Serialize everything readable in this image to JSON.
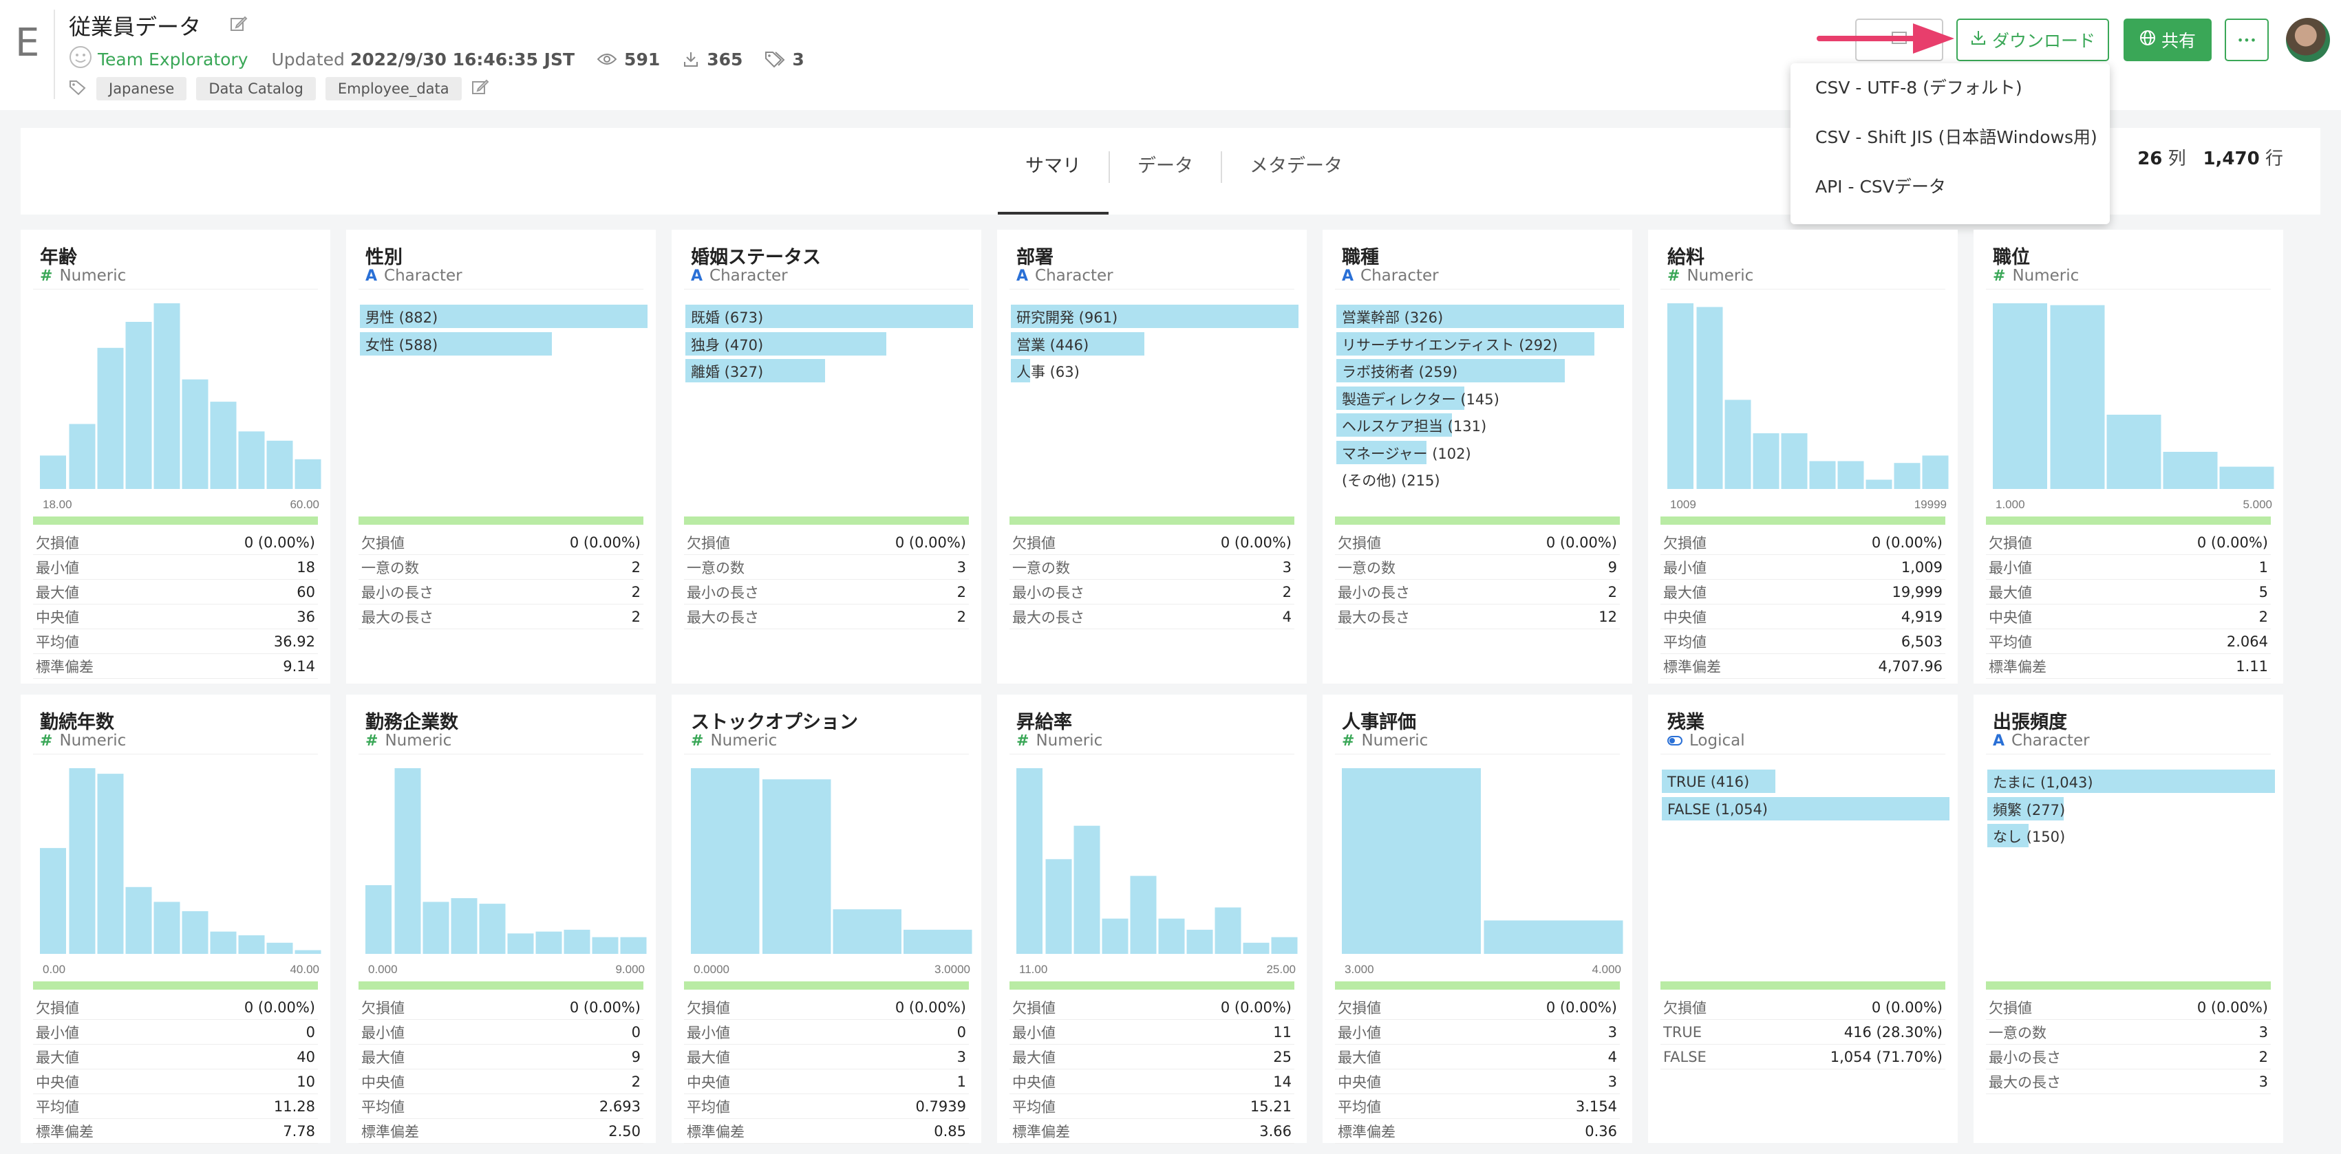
{
  "header": {
    "logo_letter": "E",
    "title": "従業員データ",
    "team": "Team Exploratory",
    "updated_label": "Updated",
    "updated_value": "2022/9/30 16:46:35 JST",
    "views": "591",
    "downloads": "365",
    "tags_count": "3",
    "tags": [
      "Japanese",
      "Data Catalog",
      "Employee_data"
    ],
    "download_button": "ダウンロード",
    "share_button": "共有",
    "more_button": "•••"
  },
  "dropdown": {
    "items": [
      "CSV - UTF-8 (デフォルト)",
      "CSV - Shift JIS (日本語Windows用)",
      "API - CSVデータ"
    ]
  },
  "tabs": [
    "サマリ",
    "データ",
    "メタデータ"
  ],
  "dims": {
    "cols": "26",
    "cols_unit": "列",
    "rows": "1,470",
    "rows_unit": "行"
  },
  "colors": {
    "accent": "#3aa757",
    "bar": "#aee1f1",
    "complete": "#b9eba4",
    "arrow": "#e83e6c"
  },
  "cards": [
    {
      "title": "年齢",
      "type": "Numeric",
      "kind": "hist",
      "hist": [
        0.18,
        0.35,
        0.76,
        0.9,
        1.0,
        0.59,
        0.47,
        0.31,
        0.26,
        0.16
      ],
      "axis_min": "18.00",
      "axis_max": "60.00",
      "stats": [
        [
          "欠損値",
          "0 (0.00%)"
        ],
        [
          "最小値",
          "18"
        ],
        [
          "最大値",
          "60"
        ],
        [
          "中央値",
          "36"
        ],
        [
          "平均値",
          "36.92"
        ],
        [
          "標準偏差",
          "9.14"
        ]
      ]
    },
    {
      "title": "性別",
      "type": "Character",
      "kind": "cat",
      "cats": [
        {
          "label": "男性 (882)",
          "frac": 1.0
        },
        {
          "label": "女性 (588)",
          "frac": 0.667
        }
      ],
      "stats": [
        [
          "欠損値",
          "0 (0.00%)"
        ],
        [
          "一意の数",
          "2"
        ],
        [
          "最小の長さ",
          "2"
        ],
        [
          "最大の長さ",
          "2"
        ]
      ]
    },
    {
      "title": "婚姻ステータス",
      "type": "Character",
      "kind": "cat",
      "cats": [
        {
          "label": "既婚 (673)",
          "frac": 1.0
        },
        {
          "label": "独身 (470)",
          "frac": 0.698
        },
        {
          "label": "離婚 (327)",
          "frac": 0.486
        }
      ],
      "stats": [
        [
          "欠損値",
          "0 (0.00%)"
        ],
        [
          "一意の数",
          "3"
        ],
        [
          "最小の長さ",
          "2"
        ],
        [
          "最大の長さ",
          "2"
        ]
      ]
    },
    {
      "title": "部署",
      "type": "Character",
      "kind": "cat",
      "cats": [
        {
          "label": "研究開発 (961)",
          "frac": 1.0
        },
        {
          "label": "営業 (446)",
          "frac": 0.464
        },
        {
          "label": "人事 (63)",
          "frac": 0.066
        }
      ],
      "stats": [
        [
          "欠損値",
          "0 (0.00%)"
        ],
        [
          "一意の数",
          "3"
        ],
        [
          "最小の長さ",
          "2"
        ],
        [
          "最大の長さ",
          "4"
        ]
      ]
    },
    {
      "title": "職種",
      "type": "Character",
      "kind": "cat",
      "cats": [
        {
          "label": "営業幹部 (326)",
          "frac": 1.0
        },
        {
          "label": "リサーチサイエンティスト (292)",
          "frac": 0.896
        },
        {
          "label": "ラボ技術者 (259)",
          "frac": 0.794
        },
        {
          "label": "製造ディレクター (145)",
          "frac": 0.445
        },
        {
          "label": "ヘルスケア担当 (131)",
          "frac": 0.402
        },
        {
          "label": "マネージャー (102)",
          "frac": 0.313
        },
        {
          "label": "(その他) (215)",
          "frac": 0.0
        }
      ],
      "stats": [
        [
          "欠損値",
          "0 (0.00%)"
        ],
        [
          "一意の数",
          "9"
        ],
        [
          "最小の長さ",
          "2"
        ],
        [
          "最大の長さ",
          "12"
        ]
      ]
    },
    {
      "title": "給料",
      "type": "Numeric",
      "kind": "hist",
      "hist": [
        1.0,
        0.98,
        0.48,
        0.3,
        0.3,
        0.15,
        0.15,
        0.05,
        0.14,
        0.18
      ],
      "axis_min": "1009",
      "axis_max": "19999",
      "stats": [
        [
          "欠損値",
          "0 (0.00%)"
        ],
        [
          "最小値",
          "1,009"
        ],
        [
          "最大値",
          "19,999"
        ],
        [
          "中央値",
          "4,919"
        ],
        [
          "平均値",
          "6,503"
        ],
        [
          "標準偏差",
          "4,707.96"
        ]
      ]
    },
    {
      "title": "職位",
      "type": "Numeric",
      "kind": "hist",
      "hist": [
        1.0,
        0.99,
        0.4,
        0.2,
        0.12
      ],
      "axis_min": "1.000",
      "axis_max": "5.000",
      "stats": [
        [
          "欠損値",
          "0 (0.00%)"
        ],
        [
          "最小値",
          "1"
        ],
        [
          "最大値",
          "5"
        ],
        [
          "中央値",
          "2"
        ],
        [
          "平均値",
          "2.064"
        ],
        [
          "標準偏差",
          "1.11"
        ]
      ]
    },
    {
      "title": "勤続年数",
      "type": "Numeric",
      "kind": "hist",
      "hist": [
        0.57,
        1.0,
        0.97,
        0.36,
        0.28,
        0.23,
        0.12,
        0.1,
        0.06,
        0.02
      ],
      "axis_min": "0.00",
      "axis_max": "40.00",
      "stats": [
        [
          "欠損値",
          "0 (0.00%)"
        ],
        [
          "最小値",
          "0"
        ],
        [
          "最大値",
          "40"
        ],
        [
          "中央値",
          "10"
        ],
        [
          "平均値",
          "11.28"
        ],
        [
          "標準偏差",
          "7.78"
        ]
      ]
    },
    {
      "title": "勤務企業数",
      "type": "Numeric",
      "kind": "hist",
      "hist": [
        0.37,
        1.0,
        0.28,
        0.3,
        0.27,
        0.11,
        0.12,
        0.13,
        0.09,
        0.09
      ],
      "axis_min": "0.000",
      "axis_max": "9.000",
      "stats": [
        [
          "欠損値",
          "0 (0.00%)"
        ],
        [
          "最小値",
          "0"
        ],
        [
          "最大値",
          "9"
        ],
        [
          "中央値",
          "2"
        ],
        [
          "平均値",
          "2.693"
        ],
        [
          "標準偏差",
          "2.50"
        ]
      ]
    },
    {
      "title": "ストックオプション",
      "type": "Numeric",
      "kind": "hist",
      "hist": [
        1.0,
        0.94,
        0.24,
        0.13
      ],
      "axis_min": "0.0000",
      "axis_max": "3.0000",
      "stats": [
        [
          "欠損値",
          "0 (0.00%)"
        ],
        [
          "最小値",
          "0"
        ],
        [
          "最大値",
          "3"
        ],
        [
          "中央値",
          "1"
        ],
        [
          "平均値",
          "0.7939"
        ],
        [
          "標準偏差",
          "0.85"
        ]
      ]
    },
    {
      "title": "昇給率",
      "type": "Numeric",
      "kind": "hist",
      "hist": [
        1.0,
        0.51,
        0.69,
        0.19,
        0.42,
        0.19,
        0.13,
        0.25,
        0.06,
        0.09
      ],
      "axis_min": "11.00",
      "axis_max": "25.00",
      "stats": [
        [
          "欠損値",
          "0 (0.00%)"
        ],
        [
          "最小値",
          "11"
        ],
        [
          "最大値",
          "25"
        ],
        [
          "中央値",
          "14"
        ],
        [
          "平均値",
          "15.21"
        ],
        [
          "標準偏差",
          "3.66"
        ]
      ]
    },
    {
      "title": "人事評価",
      "type": "Numeric",
      "kind": "hist",
      "hist": [
        1.0,
        0.18
      ],
      "axis_min": "3.000",
      "axis_max": "4.000",
      "stats": [
        [
          "欠損値",
          "0 (0.00%)"
        ],
        [
          "最小値",
          "3"
        ],
        [
          "最大値",
          "4"
        ],
        [
          "中央値",
          "3"
        ],
        [
          "平均値",
          "3.154"
        ],
        [
          "標準偏差",
          "0.36"
        ]
      ]
    },
    {
      "title": "残業",
      "type": "Logical",
      "kind": "cat",
      "cats": [
        {
          "label": "TRUE (416)",
          "frac": 0.394
        },
        {
          "label": "FALSE (1,054)",
          "frac": 1.0
        }
      ],
      "stats": [
        [
          "欠損値",
          "0 (0.00%)"
        ],
        [
          "TRUE",
          "416 (28.30%)"
        ],
        [
          "FALSE",
          "1,054 (71.70%)"
        ]
      ]
    },
    {
      "title": "出張頻度",
      "type": "Character",
      "kind": "cat",
      "cats": [
        {
          "label": "たまに (1,043)",
          "frac": 1.0
        },
        {
          "label": "頻繁 (277)",
          "frac": 0.266
        },
        {
          "label": "なし (150)",
          "frac": 0.144
        }
      ],
      "stats": [
        [
          "欠損値",
          "0 (0.00%)"
        ],
        [
          "一意の数",
          "3"
        ],
        [
          "最小の長さ",
          "2"
        ],
        [
          "最大の長さ",
          "3"
        ]
      ]
    }
  ]
}
